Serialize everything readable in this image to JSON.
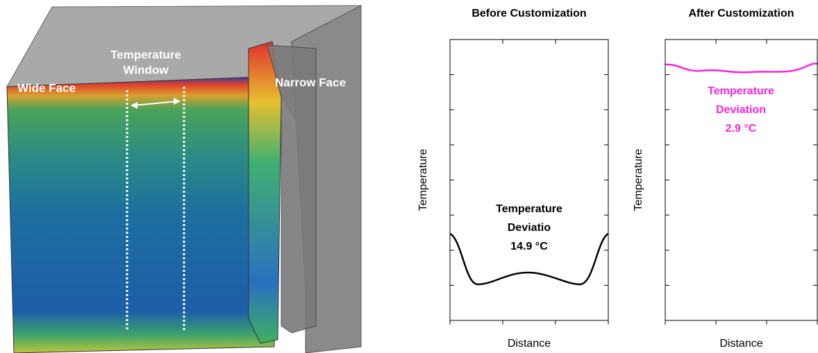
{
  "render": {
    "labels": {
      "wide_face": "Wide Face",
      "temperature_window": [
        "Temperature",
        "Window"
      ],
      "narrow_face": "Narrow Face"
    }
  },
  "panels": [
    {
      "title": "Before Customization",
      "x_label": "Distance",
      "y_label": "Temperature",
      "annotation": [
        "Temperature",
        "Deviatio",
        "14.9 °C"
      ]
    },
    {
      "title": "After Customization",
      "x_label": "Distance",
      "y_label": "Temperature",
      "annotation": [
        "Temperature",
        "Deviation",
        "2.9 °C"
      ]
    }
  ]
}
